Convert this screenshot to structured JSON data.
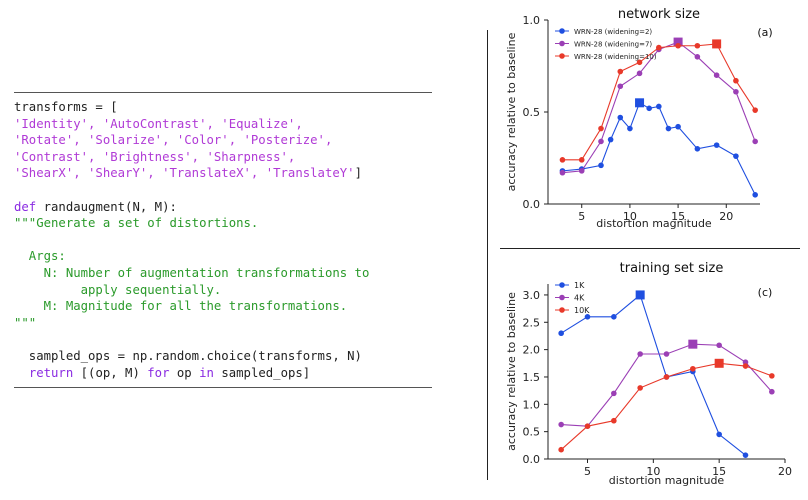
{
  "code": {
    "lines": [
      [
        {
          "t": "transforms = [",
          "c": "plain"
        }
      ],
      [
        {
          "t": "'Identity', 'AutoContrast', 'Equalize',",
          "c": "str"
        }
      ],
      [
        {
          "t": "'Rotate', 'Solarize', 'Color', 'Posterize',",
          "c": "str"
        }
      ],
      [
        {
          "t": "'Contrast', 'Brightness', 'Sharpness',",
          "c": "str"
        }
      ],
      [
        {
          "t": "'ShearX', 'ShearY', 'TranslateX', 'TranslateY'",
          "c": "str"
        },
        {
          "t": "]",
          "c": "plain"
        }
      ],
      [
        {
          "t": "",
          "c": "plain"
        }
      ],
      [
        {
          "t": "def ",
          "c": "kw"
        },
        {
          "t": "randaugment(N, M):",
          "c": "plain"
        }
      ],
      [
        {
          "t": "\"\"\"Generate a set of distortions.",
          "c": "doc"
        }
      ],
      [
        {
          "t": "",
          "c": "plain"
        }
      ],
      [
        {
          "t": "  Args:",
          "c": "doc"
        }
      ],
      [
        {
          "t": "    N: Number of augmentation transformations to",
          "c": "doc"
        }
      ],
      [
        {
          "t": "         apply sequentially.",
          "c": "doc"
        }
      ],
      [
        {
          "t": "    M: Magnitude for all the transformations.",
          "c": "doc"
        }
      ],
      [
        {
          "t": "\"\"\"",
          "c": "doc"
        }
      ],
      [
        {
          "t": "",
          "c": "plain"
        }
      ],
      [
        {
          "t": "  sampled_ops = np.random.choice(transforms, N)",
          "c": "plain"
        }
      ],
      [
        {
          "t": "  ",
          "c": "plain"
        },
        {
          "t": "return ",
          "c": "kw"
        },
        {
          "t": "[(op, M) ",
          "c": "plain"
        },
        {
          "t": "for ",
          "c": "kw"
        },
        {
          "t": "op ",
          "c": "plain"
        },
        {
          "t": "in ",
          "c": "kw"
        },
        {
          "t": "sampled_ops]",
          "c": "plain"
        }
      ]
    ]
  },
  "chart_data": [
    {
      "type": "line",
      "title": "network size",
      "panel_label": "(a)",
      "xlabel": "distortion magnitude",
      "ylabel": "accuracy relative to baseline",
      "xlim": [
        1.5,
        23.5
      ],
      "ylim": [
        0,
        1.0
      ],
      "xticks": [
        5,
        10,
        15,
        20
      ],
      "yticks": [
        0.0,
        0.5,
        1.0
      ],
      "ytick_labels": [
        "0.0",
        "0.5",
        "1.0"
      ],
      "legend_position": "top-left",
      "series": [
        {
          "name": "WRN-28 (widening=2)",
          "color": "#1f4fe0",
          "x": [
            3,
            5,
            7,
            8,
            9,
            10,
            11,
            12,
            13,
            14,
            15,
            17,
            19,
            21,
            23
          ],
          "y": [
            0.18,
            0.19,
            0.21,
            0.35,
            0.47,
            0.41,
            0.55,
            0.52,
            0.53,
            0.41,
            0.42,
            0.3,
            0.32,
            0.26,
            0.05
          ],
          "best_x": 11
        },
        {
          "name": "WRN-28 (widening=7)",
          "color": "#9b3fb5",
          "x": [
            3,
            5,
            7,
            9,
            11,
            13,
            15,
            17,
            19,
            21,
            23
          ],
          "y": [
            0.17,
            0.18,
            0.34,
            0.64,
            0.71,
            0.84,
            0.88,
            0.8,
            0.7,
            0.61,
            0.34
          ],
          "best_x": 15
        },
        {
          "name": "WRN-28 (widening=10)",
          "color": "#e8392a",
          "x": [
            3,
            5,
            7,
            9,
            11,
            13,
            15,
            17,
            19,
            21,
            23
          ],
          "y": [
            0.24,
            0.24,
            0.41,
            0.72,
            0.77,
            0.85,
            0.86,
            0.86,
            0.87,
            0.67,
            0.51
          ],
          "best_x": 19
        }
      ]
    },
    {
      "type": "line",
      "title": "training set size",
      "panel_label": "(c)",
      "xlabel": "distortion magnitude",
      "ylabel": "accuracy relative to baseline",
      "xlim": [
        2,
        20
      ],
      "ylim": [
        0,
        3.2
      ],
      "xticks": [
        5,
        10,
        15,
        20
      ],
      "yticks": [
        0.0,
        0.5,
        1.0,
        1.5,
        2.0,
        2.5,
        3.0
      ],
      "ytick_labels": [
        "0.0",
        "0.5",
        "1.0",
        "1.5",
        "2.0",
        "2.5",
        "3.0"
      ],
      "legend_position": "top-left",
      "series": [
        {
          "name": "1K",
          "color": "#1f4fe0",
          "x": [
            3,
            5,
            7,
            9,
            11,
            13,
            15,
            17
          ],
          "y": [
            2.3,
            2.6,
            2.6,
            3.0,
            1.5,
            1.6,
            0.45,
            0.07
          ],
          "best_x": 9
        },
        {
          "name": "4K",
          "color": "#9b3fb5",
          "x": [
            3,
            5,
            7,
            9,
            11,
            13,
            15,
            17,
            19
          ],
          "y": [
            0.63,
            0.6,
            1.2,
            1.92,
            1.92,
            2.1,
            2.08,
            1.77,
            1.23
          ],
          "best_x": 13
        },
        {
          "name": "10K",
          "color": "#e8392a",
          "x": [
            3,
            5,
            7,
            9,
            11,
            13,
            15,
            17,
            19
          ],
          "y": [
            0.17,
            0.6,
            0.7,
            1.3,
            1.5,
            1.65,
            1.75,
            1.7,
            1.52
          ],
          "best_x": 15
        }
      ]
    }
  ]
}
